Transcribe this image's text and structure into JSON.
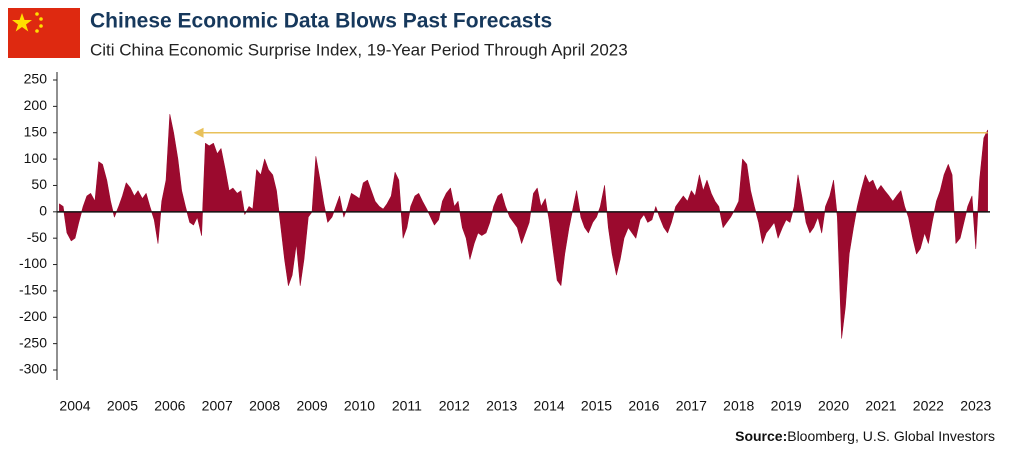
{
  "chart_data": {
    "type": "area",
    "title": "Chinese Economic Data Blows Past Forecasts",
    "subtitle": "Citi China Economic Surprise Index, 19-Year Period Through April 2023",
    "source": {
      "label": "Source:",
      "text": "Bloomberg, U.S. Global Investors"
    },
    "color": "#9b0a2e",
    "xlim": [
      2003.62,
      2023.3
    ],
    "xticks": [
      2004,
      2005,
      2006,
      2007,
      2008,
      2009,
      2010,
      2011,
      2012,
      2013,
      2014,
      2015,
      2016,
      2017,
      2018,
      2019,
      2020,
      2021,
      2022,
      2023
    ],
    "ylim": [
      -300,
      250
    ],
    "yticks": [
      250,
      200,
      150,
      100,
      50,
      0,
      -50,
      -100,
      -150,
      -200,
      -250,
      -300
    ],
    "grid": false,
    "annotation_arrow": {
      "y": 150,
      "x_from": 2023.25,
      "x_to": 2006.5,
      "color": "#e8c15a"
    },
    "x": [
      2003.67,
      2003.75,
      2003.83,
      2003.92,
      2004.0,
      2004.08,
      2004.17,
      2004.25,
      2004.33,
      2004.42,
      2004.5,
      2004.58,
      2004.67,
      2004.75,
      2004.83,
      2004.92,
      2005.0,
      2005.08,
      2005.17,
      2005.25,
      2005.33,
      2005.42,
      2005.5,
      2005.58,
      2005.67,
      2005.75,
      2005.83,
      2005.92,
      2006.0,
      2006.08,
      2006.17,
      2006.25,
      2006.33,
      2006.42,
      2006.5,
      2006.58,
      2006.67,
      2006.75,
      2006.83,
      2006.92,
      2007.0,
      2007.08,
      2007.17,
      2007.25,
      2007.33,
      2007.42,
      2007.5,
      2007.58,
      2007.67,
      2007.75,
      2007.83,
      2007.92,
      2008.0,
      2008.08,
      2008.17,
      2008.25,
      2008.33,
      2008.42,
      2008.5,
      2008.58,
      2008.67,
      2008.75,
      2008.83,
      2008.92,
      2009.0,
      2009.08,
      2009.17,
      2009.25,
      2009.33,
      2009.42,
      2009.5,
      2009.58,
      2009.67,
      2009.75,
      2009.83,
      2009.92,
      2010.0,
      2010.08,
      2010.17,
      2010.25,
      2010.33,
      2010.42,
      2010.5,
      2010.58,
      2010.67,
      2010.75,
      2010.83,
      2010.92,
      2011.0,
      2011.08,
      2011.17,
      2011.25,
      2011.33,
      2011.42,
      2011.5,
      2011.58,
      2011.67,
      2011.75,
      2011.83,
      2011.92,
      2012.0,
      2012.08,
      2012.17,
      2012.25,
      2012.33,
      2012.42,
      2012.5,
      2012.58,
      2012.67,
      2012.75,
      2012.83,
      2012.92,
      2013.0,
      2013.08,
      2013.17,
      2013.25,
      2013.33,
      2013.42,
      2013.5,
      2013.58,
      2013.67,
      2013.75,
      2013.83,
      2013.92,
      2014.0,
      2014.08,
      2014.17,
      2014.25,
      2014.33,
      2014.42,
      2014.5,
      2014.58,
      2014.67,
      2014.75,
      2014.83,
      2014.92,
      2015.0,
      2015.08,
      2015.17,
      2015.25,
      2015.33,
      2015.42,
      2015.5,
      2015.58,
      2015.67,
      2015.75,
      2015.83,
      2015.92,
      2016.0,
      2016.08,
      2016.17,
      2016.25,
      2016.33,
      2016.42,
      2016.5,
      2016.58,
      2016.67,
      2016.75,
      2016.83,
      2016.92,
      2017.0,
      2017.08,
      2017.17,
      2017.25,
      2017.33,
      2017.42,
      2017.5,
      2017.58,
      2017.67,
      2017.75,
      2017.83,
      2017.92,
      2018.0,
      2018.08,
      2018.17,
      2018.25,
      2018.33,
      2018.42,
      2018.5,
      2018.58,
      2018.67,
      2018.75,
      2018.83,
      2018.92,
      2019.0,
      2019.08,
      2019.17,
      2019.25,
      2019.33,
      2019.42,
      2019.5,
      2019.58,
      2019.67,
      2019.75,
      2019.83,
      2019.92,
      2020.0,
      2020.08,
      2020.17,
      2020.25,
      2020.33,
      2020.42,
      2020.5,
      2020.58,
      2020.67,
      2020.75,
      2020.83,
      2020.92,
      2021.0,
      2021.08,
      2021.17,
      2021.25,
      2021.33,
      2021.42,
      2021.5,
      2021.58,
      2021.67,
      2021.75,
      2021.83,
      2021.92,
      2022.0,
      2022.08,
      2022.17,
      2022.25,
      2022.33,
      2022.42,
      2022.5,
      2022.58,
      2022.67,
      2022.75,
      2022.83,
      2022.92,
      2023.0,
      2023.08,
      2023.17,
      2023.25
    ],
    "values": [
      15,
      10,
      -40,
      -55,
      -50,
      -20,
      10,
      30,
      35,
      20,
      95,
      90,
      60,
      20,
      -10,
      10,
      30,
      55,
      45,
      30,
      40,
      25,
      35,
      10,
      -15,
      -60,
      20,
      60,
      185,
      150,
      100,
      40,
      10,
      -20,
      -25,
      -10,
      -45,
      130,
      125,
      130,
      110,
      120,
      80,
      40,
      45,
      35,
      40,
      -5,
      10,
      5,
      80,
      70,
      100,
      80,
      70,
      40,
      -20,
      -90,
      -140,
      -120,
      -60,
      -140,
      -90,
      -10,
      0,
      105,
      60,
      15,
      -20,
      -10,
      10,
      30,
      -10,
      10,
      35,
      30,
      25,
      55,
      60,
      40,
      20,
      10,
      5,
      15,
      30,
      75,
      60,
      -50,
      -30,
      10,
      30,
      35,
      20,
      5,
      -10,
      -25,
      -15,
      20,
      35,
      45,
      10,
      20,
      -30,
      -50,
      -90,
      -60,
      -40,
      -45,
      -40,
      -20,
      10,
      30,
      35,
      10,
      -10,
      -20,
      -30,
      -60,
      -40,
      -20,
      35,
      45,
      10,
      25,
      -15,
      -70,
      -130,
      -140,
      -80,
      -30,
      5,
      40,
      -10,
      -30,
      -40,
      -20,
      -10,
      10,
      50,
      -30,
      -80,
      -120,
      -90,
      -50,
      -30,
      -40,
      -50,
      -15,
      -5,
      -20,
      -15,
      10,
      -10,
      -30,
      -40,
      -20,
      10,
      20,
      30,
      20,
      40,
      30,
      70,
      40,
      60,
      35,
      20,
      10,
      -30,
      -20,
      -10,
      5,
      20,
      100,
      90,
      40,
      10,
      -20,
      -60,
      -40,
      -30,
      -20,
      -50,
      -30,
      -15,
      -20,
      10,
      70,
      30,
      -20,
      -40,
      -30,
      -10,
      -40,
      10,
      30,
      60,
      -10,
      -240,
      -180,
      -80,
      -30,
      10,
      40,
      70,
      55,
      60,
      40,
      50,
      40,
      30,
      20,
      30,
      40,
      10,
      -10,
      -50,
      -80,
      -70,
      -40,
      -60,
      -20,
      20,
      40,
      70,
      90,
      70,
      -60,
      -50,
      -20,
      10,
      30,
      -70,
      60,
      140,
      155
    ]
  }
}
